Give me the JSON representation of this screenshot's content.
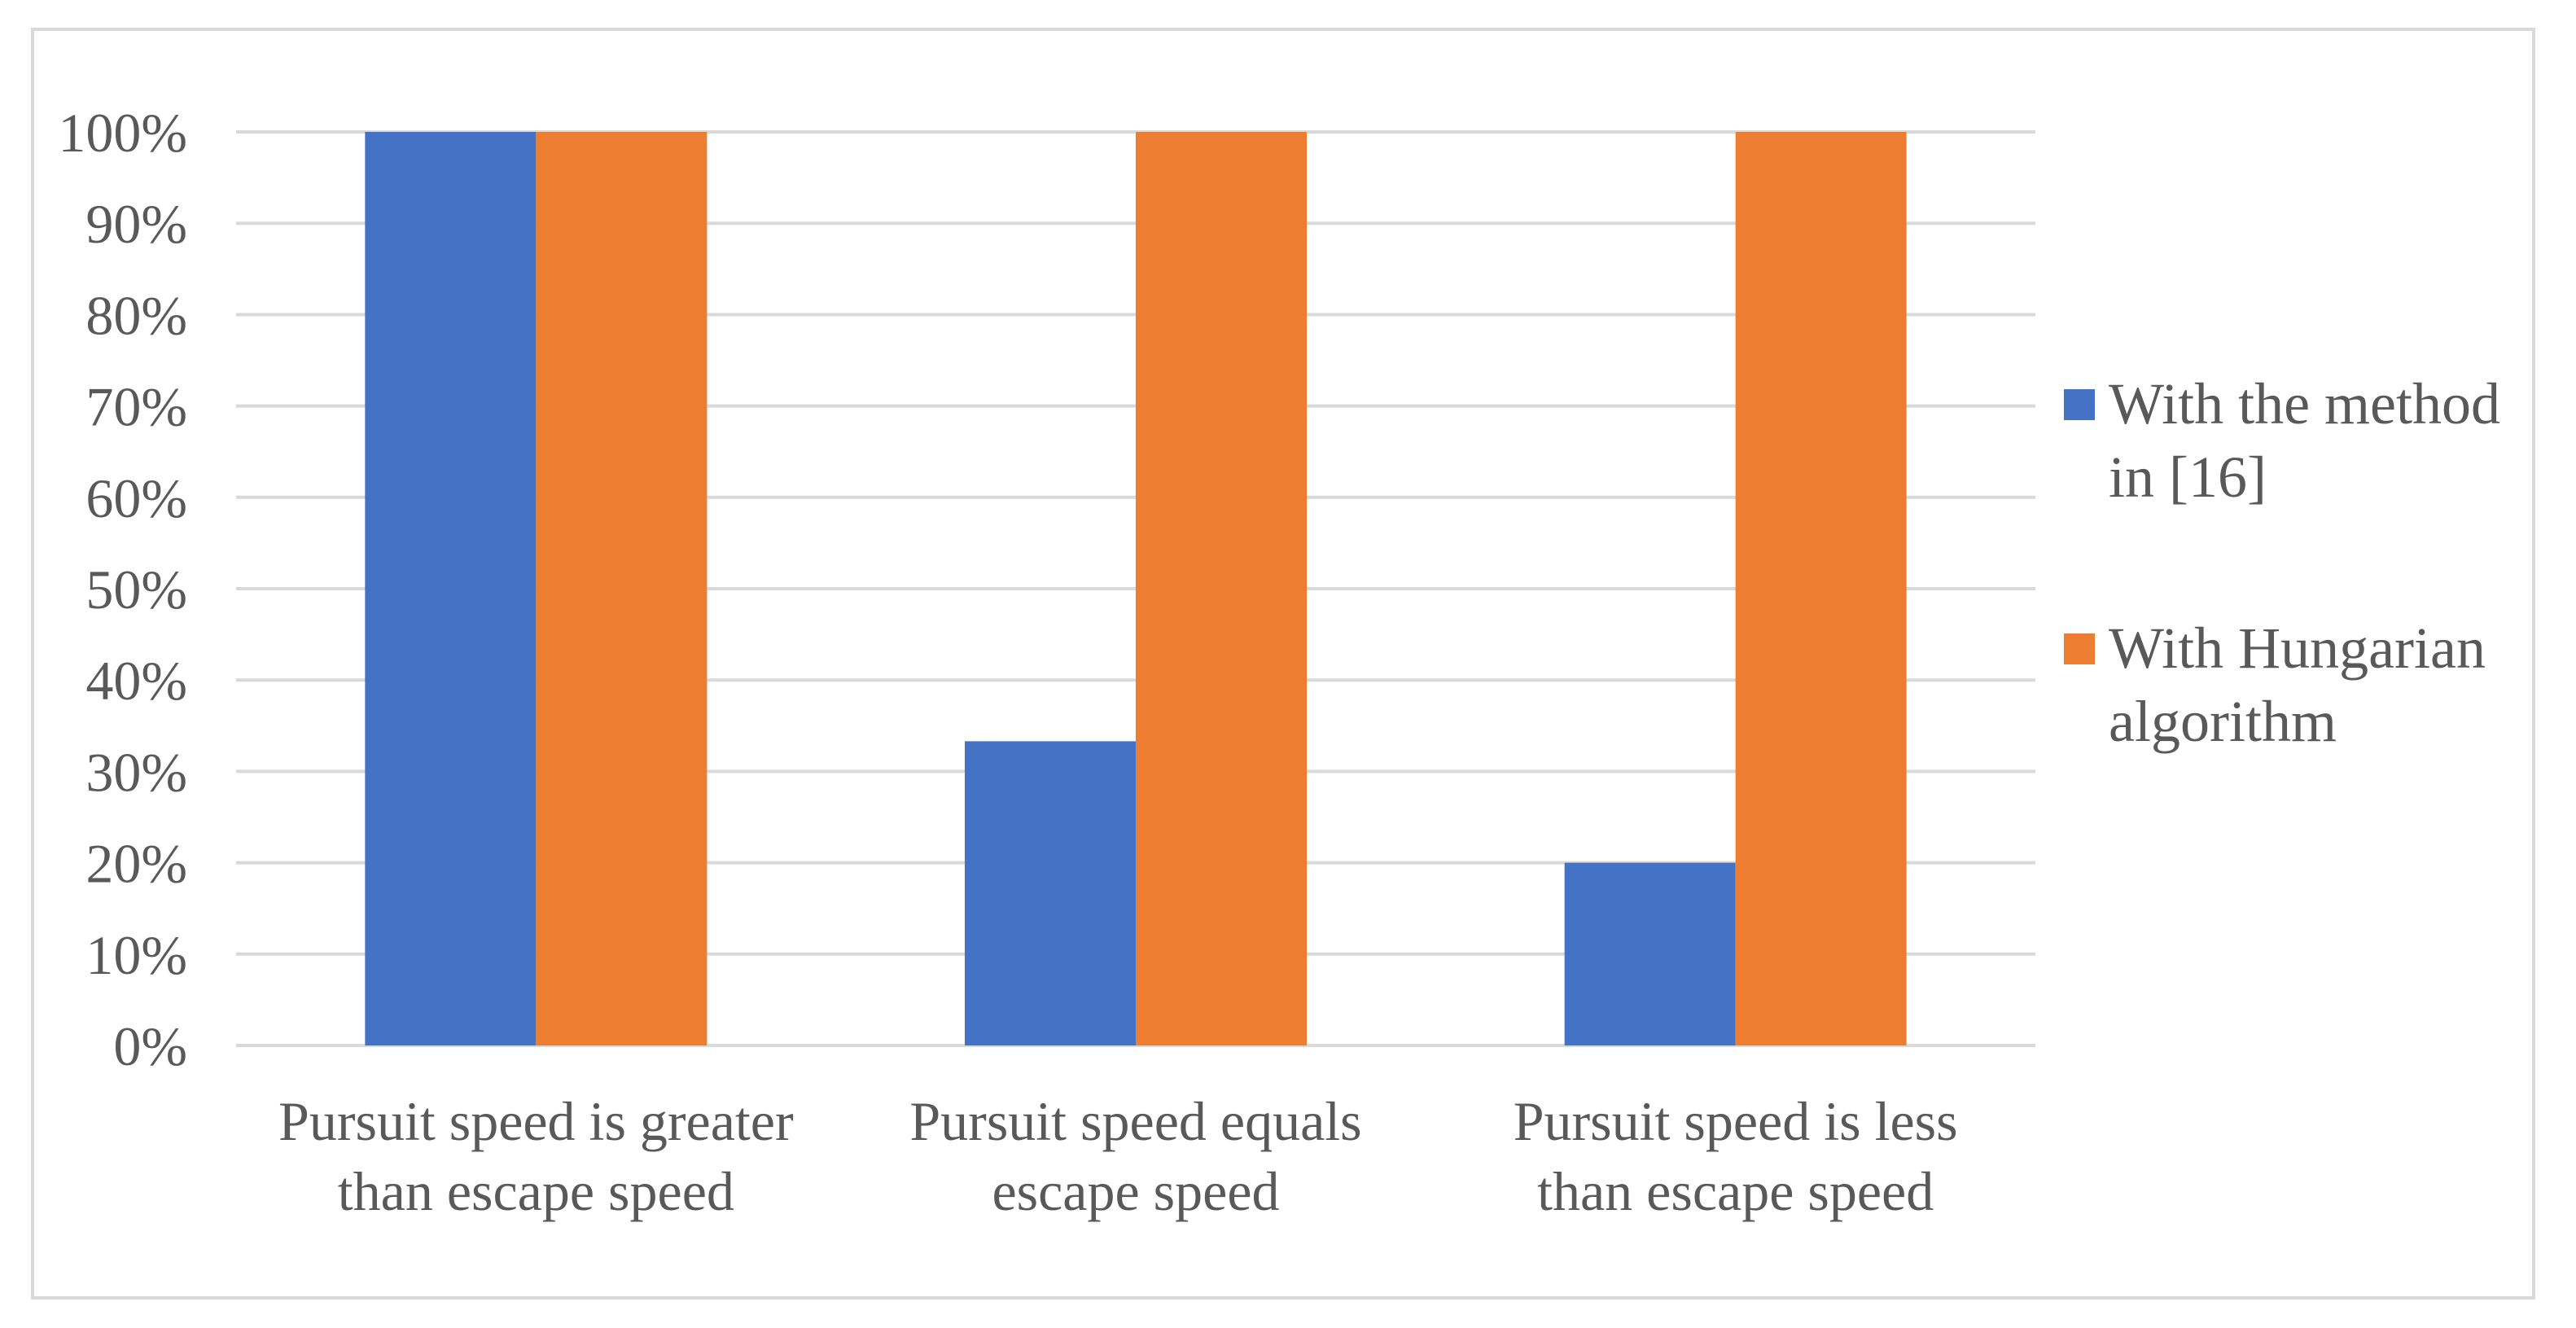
{
  "chart_data": {
    "type": "bar",
    "categories": [
      [
        "Pursuit speed is greater",
        "than escape speed"
      ],
      [
        "Pursuit speed equals",
        "escape speed"
      ],
      [
        "Pursuit speed is less",
        "than escape speed"
      ]
    ],
    "series": [
      {
        "name": [
          "With the method",
          "in [16]"
        ],
        "color": "#4472c4",
        "values": [
          100,
          33.3,
          20
        ]
      },
      {
        "name": [
          "With Hungarian",
          "algorithm"
        ],
        "color": "#ed7d31",
        "values": [
          100,
          100,
          100
        ]
      }
    ],
    "ylim": [
      0,
      100
    ],
    "yticks": [
      0,
      10,
      20,
      30,
      40,
      50,
      60,
      70,
      80,
      90,
      100
    ],
    "ytick_labels": [
      "0%",
      "10%",
      "20%",
      "30%",
      "40%",
      "50%",
      "60%",
      "70%",
      "80%",
      "90%",
      "100%"
    ],
    "grid": true,
    "legend_position": "right",
    "title": "",
    "xlabel": "",
    "ylabel": ""
  }
}
